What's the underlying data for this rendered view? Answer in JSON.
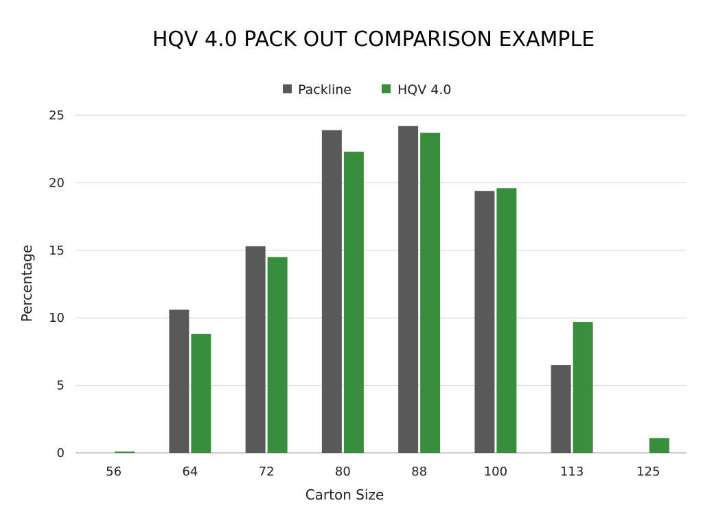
{
  "chart_data": {
    "type": "bar",
    "title": "HQV 4.0 PACK OUT COMPARISON EXAMPLE",
    "xlabel": "Carton Size",
    "ylabel": "Percentage",
    "categories": [
      "56",
      "64",
      "72",
      "80",
      "88",
      "100",
      "113",
      "125"
    ],
    "series": [
      {
        "name": "Packline",
        "color": "#595959",
        "values": [
          0,
          10.6,
          15.3,
          23.9,
          24.2,
          19.4,
          6.5,
          0
        ]
      },
      {
        "name": "HQV 4.0",
        "color": "#388e3c",
        "values": [
          0.1,
          8.8,
          14.5,
          22.3,
          23.7,
          19.6,
          9.7,
          1.1
        ]
      }
    ],
    "ylim": [
      0,
      25
    ],
    "yticks": [
      0,
      5,
      10,
      15,
      20,
      25
    ],
    "grid": true,
    "legend_position": "top-center"
  }
}
